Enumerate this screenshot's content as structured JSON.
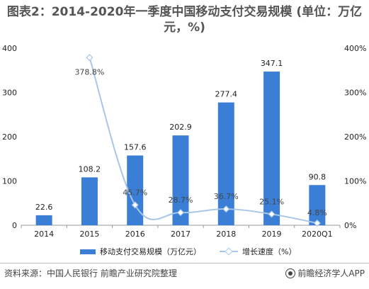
{
  "title": "图表2：2014-2020年一季度中国移动支付交易规模 (单位：万亿元，%)",
  "chart_data": {
    "type": "bar+line",
    "categories": [
      "2014",
      "2015",
      "2016",
      "2017",
      "2018",
      "2019",
      "2020Q1"
    ],
    "series": [
      {
        "name": "移动支付交易规模（万亿元）",
        "type": "bar",
        "axis": "left",
        "values": [
          22.6,
          108.2,
          157.6,
          202.9,
          277.4,
          347.1,
          90.8
        ],
        "labels": [
          "22.6",
          "108.2",
          "157.6",
          "202.9",
          "277.4",
          "347.1",
          "90.8"
        ],
        "color": "#3a7fd5"
      },
      {
        "name": "增长速度（%）",
        "type": "line",
        "axis": "right",
        "smooth": true,
        "values": [
          null,
          378.8,
          45.7,
          28.7,
          36.7,
          25.1,
          4.8
        ],
        "labels": [
          "",
          "378.8%",
          "45.7%",
          "28.7%",
          "36.7%",
          "25.1%",
          "4.8%"
        ],
        "color": "#a9c6e8"
      }
    ],
    "yleft": {
      "lim": [
        0,
        400
      ],
      "ticks": [
        "0",
        "100",
        "200",
        "300",
        "400"
      ]
    },
    "yright": {
      "lim": [
        0,
        400
      ],
      "ticks": [
        "0%",
        "100%",
        "200%",
        "300%",
        "400%"
      ]
    },
    "grid": false,
    "legend": "bottom"
  },
  "legend": {
    "bar_label": "移动支付交易规模（万亿元）",
    "line_label": "增长速度（%）"
  },
  "footer": {
    "source": "资料来源：中国人民银行 前瞻产业研究院整理",
    "brand": "前瞻经济学人APP"
  }
}
